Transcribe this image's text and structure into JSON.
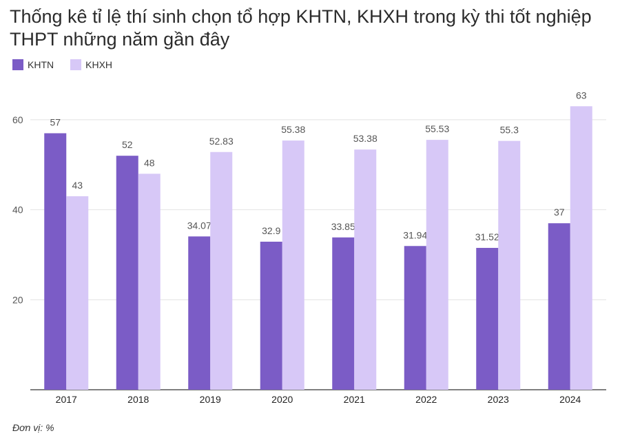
{
  "chart_data": {
    "type": "bar",
    "title": "Thống kê tỉ lệ thí sinh chọn tổ hợp KHTN, KHXH trong kỳ thi tốt nghiệp THPT những năm gần đây",
    "categories": [
      "2017",
      "2018",
      "2019",
      "2020",
      "2021",
      "2022",
      "2023",
      "2024"
    ],
    "series": [
      {
        "name": "KHTN",
        "values": [
          57,
          52,
          34.07,
          32.9,
          33.85,
          31.94,
          31.52,
          37
        ],
        "color": "#7b5cc6"
      },
      {
        "name": "KHXH",
        "values": [
          43,
          48,
          52.83,
          55.38,
          53.38,
          55.53,
          55.3,
          63
        ],
        "color": "#d7c8f7"
      }
    ],
    "yticks": [
      20,
      40,
      60
    ],
    "ylim": [
      0,
      65
    ],
    "grid": true,
    "legend": "top-left",
    "unit_note": "Đơn vị: %"
  }
}
